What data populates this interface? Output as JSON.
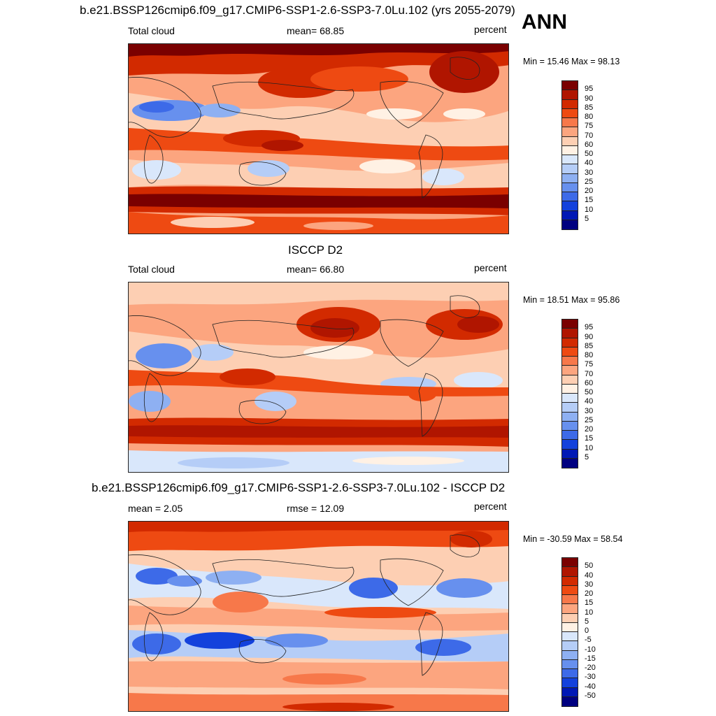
{
  "season": "ANN",
  "panels": [
    {
      "title": "b.e21.BSSP126cmip6.f09_g17.CMIP6-SSP1-2.6-SSP3-7.0Lu.102 (yrs 2055-2079)",
      "left_label": "Total cloud",
      "center_label": "mean=  68.85",
      "right_label": "percent",
      "minmax": "Min =  15.46 Max =  98.13",
      "map_content": "total-cloud-model"
    },
    {
      "title": "ISCCP D2",
      "left_label": "Total cloud",
      "center_label": "mean=  66.80",
      "right_label": "percent",
      "minmax": "Min =  18.51 Max =  95.86",
      "map_content": "total-cloud-obs"
    },
    {
      "title": "b.e21.BSSP126cmip6.f09_g17.CMIP6-SSP1-2.6-SSP3-7.0Lu.102 - ISCCP D2",
      "left_label": "mean =   2.05",
      "center_label": "rmse =  12.09",
      "right_label": "percent",
      "minmax": "Min = -30.59 Max =  58.54",
      "map_content": "difference"
    }
  ],
  "colorbar_abs": {
    "labels": [
      "95",
      "90",
      "85",
      "80",
      "75",
      "70",
      "60",
      "50",
      "40",
      "30",
      "25",
      "20",
      "15",
      "10",
      "5"
    ],
    "colors": [
      "#7a0000",
      "#b01500",
      "#d22a00",
      "#ee4a12",
      "#f7784a",
      "#fca57f",
      "#fdcfb3",
      "#fff1e4",
      "#d9e7fb",
      "#b5cdf7",
      "#8eb0f2",
      "#6790ee",
      "#3d6ae8",
      "#1341dc",
      "#0018b5",
      "#000080"
    ]
  },
  "colorbar_diff": {
    "labels": [
      "50",
      "40",
      "30",
      "20",
      "15",
      "10",
      "5",
      "0",
      "-5",
      "-10",
      "-15",
      "-20",
      "-30",
      "-40",
      "-50"
    ],
    "colors": [
      "#7a0000",
      "#b01500",
      "#d22a00",
      "#ee4a12",
      "#f7784a",
      "#fca57f",
      "#fdcfb3",
      "#fff1e4",
      "#d9e7fb",
      "#b5cdf7",
      "#8eb0f2",
      "#6790ee",
      "#3d6ae8",
      "#1341dc",
      "#0018b5",
      "#000080"
    ]
  }
}
